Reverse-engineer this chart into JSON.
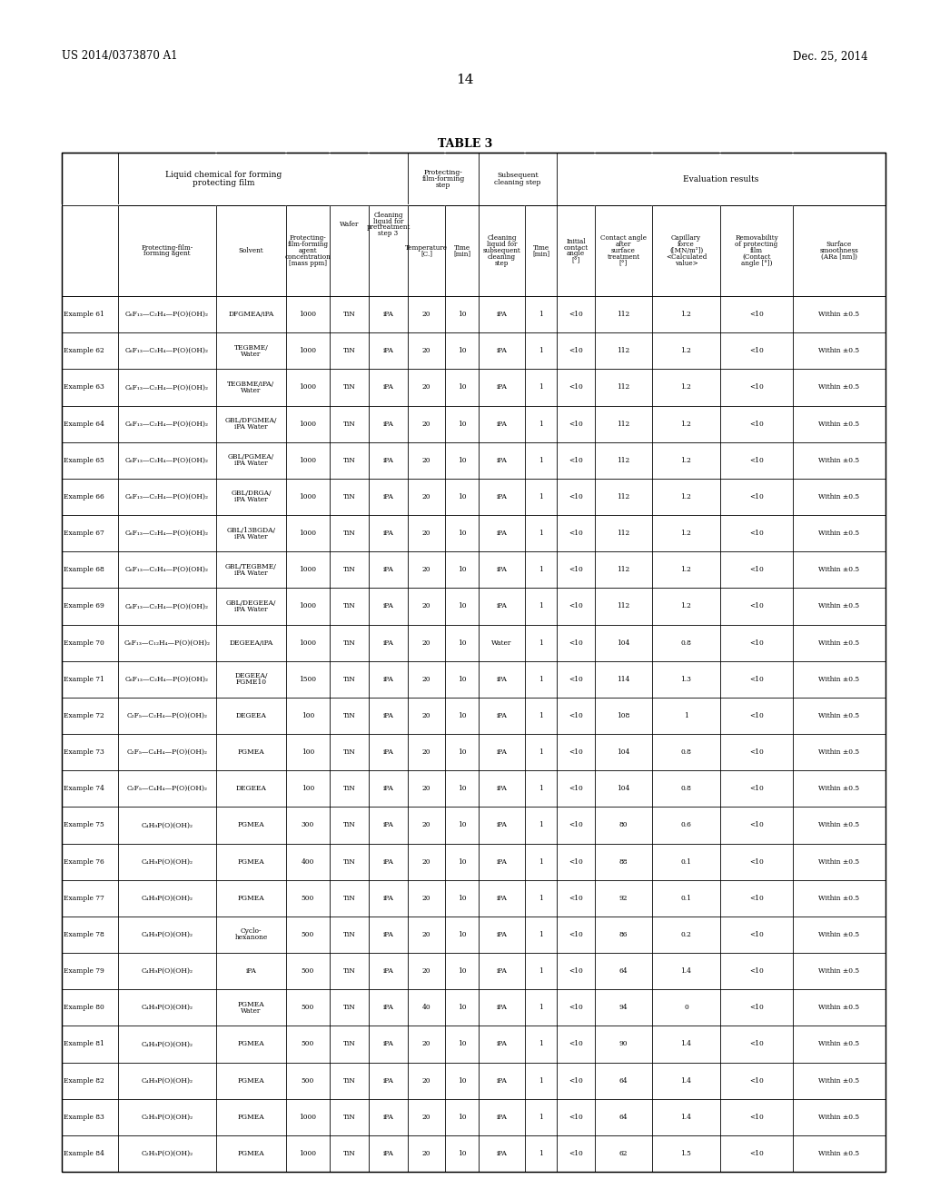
{
  "page_number": "14",
  "patent_number": "US 2014/0373870 A1",
  "patent_date": "Dec. 25, 2014",
  "table_title": "TABLE 3",
  "rows": [
    [
      "Example 61",
      "C₆F₁₃—C₂H₄—P(O)(OH)₂",
      "DFGMEA/iPA",
      "1000",
      "TiN",
      "iPA",
      "20",
      "10",
      "iPA",
      "1",
      "<10",
      "112",
      "1.2",
      "<10",
      "Within ±0.5"
    ],
    [
      "Example 62",
      "C₆F₁₃—C₂H₄—P(O)(OH)₂",
      "TEGBME/\nWater",
      "1000",
      "TiN",
      "iPA",
      "20",
      "10",
      "iPA",
      "1",
      "<10",
      "112",
      "1.2",
      "<10",
      "Within ±0.5"
    ],
    [
      "Example 63",
      "C₆F₁₃—C₂H₄—P(O)(OH)₂",
      "TEGBME/iPA/\nWater",
      "1000",
      "TiN",
      "iPA",
      "20",
      "10",
      "iPA",
      "1",
      "<10",
      "112",
      "1.2",
      "<10",
      "Within ±0.5"
    ],
    [
      "Example 64",
      "C₆F₁₃—C₂H₄—P(O)(OH)₂",
      "GBL/DFGMEA/\niPA Water",
      "1000",
      "TiN",
      "iPA",
      "20",
      "10",
      "iPA",
      "1",
      "<10",
      "112",
      "1.2",
      "<10",
      "Within ±0.5"
    ],
    [
      "Example 65",
      "C₆F₁₃—C₂H₄—P(O)(OH)₂",
      "GBL/PGMEA/\niPA Water",
      "1000",
      "TiN",
      "iPA",
      "20",
      "10",
      "iPA",
      "1",
      "<10",
      "112",
      "1.2",
      "<10",
      "Within ±0.5"
    ],
    [
      "Example 66",
      "C₆F₁₃—C₂H₄—P(O)(OH)₂",
      "GBL/DRGA/\niPA Water",
      "1000",
      "TiN",
      "iPA",
      "20",
      "10",
      "iPA",
      "1",
      "<10",
      "112",
      "1.2",
      "<10",
      "Within ±0.5"
    ],
    [
      "Example 67",
      "C₆F₁₃—C₂H₄—P(O)(OH)₂",
      "GBL/13BGDA/\niPA Water",
      "1000",
      "TiN",
      "iPA",
      "20",
      "10",
      "iPA",
      "1",
      "<10",
      "112",
      "1.2",
      "<10",
      "Within ±0.5"
    ],
    [
      "Example 68",
      "C₆F₁₃—C₂H₄—P(O)(OH)₂",
      "GBL/TEGBME/\niPA Water",
      "1000",
      "TiN",
      "iPA",
      "20",
      "10",
      "iPA",
      "1",
      "<10",
      "112",
      "1.2",
      "<10",
      "Within ±0.5"
    ],
    [
      "Example 69",
      "C₆F₁₃—C₂H₄—P(O)(OH)₂",
      "GBL/DEGEEA/\niPA Water",
      "1000",
      "TiN",
      "iPA",
      "20",
      "10",
      "iPA",
      "1",
      "<10",
      "112",
      "1.2",
      "<10",
      "Within ±0.5"
    ],
    [
      "Example 70",
      "C₆F₁₃—C₁₂H₄—P(O)(OH)₂",
      "DEGEEA/iPA",
      "1000",
      "TiN",
      "iPA",
      "20",
      "10",
      "Water",
      "1",
      "<10",
      "104",
      "0.8",
      "<10",
      "Within ±0.5"
    ],
    [
      "Example 71",
      "C₆F₁₃—C₂H₄—P(O)(OH)₂",
      "DEGEEA/\nFGME10",
      "1500",
      "TiN",
      "iPA",
      "20",
      "10",
      "iPA",
      "1",
      "<10",
      "114",
      "1.3",
      "<10",
      "Within ±0.5"
    ],
    [
      "Example 72",
      "C₂F₅—C₂H₄—P(O)(OH)₂",
      "DEGEEA",
      "100",
      "TiN",
      "iPA",
      "20",
      "10",
      "iPA",
      "1",
      "<10",
      "108",
      "1",
      "<10",
      "Within ±0.5"
    ],
    [
      "Example 73",
      "C₂F₅—C₄H₄—P(O)(OH)₂",
      "PGMEA",
      "100",
      "TiN",
      "iPA",
      "20",
      "10",
      "iPA",
      "1",
      "<10",
      "104",
      "0.8",
      "<10",
      "Within ±0.5"
    ],
    [
      "Example 74",
      "C₂F₅—C₄H₄—P(O)(OH)₂",
      "DEGEEA",
      "100",
      "TiN",
      "iPA",
      "20",
      "10",
      "iPA",
      "1",
      "<10",
      "104",
      "0.8",
      "<10",
      "Within ±0.5"
    ],
    [
      "Example 75",
      "C₄H₉P(O)(OH)₂",
      "PGMEA",
      "300",
      "TiN",
      "iPA",
      "20",
      "10",
      "iPA",
      "1",
      "<10",
      "80",
      "0.6",
      "<10",
      "Within ±0.5"
    ],
    [
      "Example 76",
      "C₄H₉P(O)(OH)₂",
      "PGMEA",
      "400",
      "TiN",
      "iPA",
      "20",
      "10",
      "iPA",
      "1",
      "<10",
      "88",
      "0.1",
      "<10",
      "Within ±0.5"
    ],
    [
      "Example 77",
      "C₄H₉P(O)(OH)₂",
      "PGMEA",
      "500",
      "TiN",
      "iPA",
      "20",
      "10",
      "iPA",
      "1",
      "<10",
      "92",
      "0.1",
      "<10",
      "Within ±0.5"
    ],
    [
      "Example 78",
      "C₄H₉P(O)(OH)₂",
      "Cyclo-\nhexanone",
      "500",
      "TiN",
      "iPA",
      "20",
      "10",
      "iPA",
      "1",
      "<10",
      "86",
      "0.2",
      "<10",
      "Within ±0.5"
    ],
    [
      "Example 79",
      "C₄H₉P(O)(OH)₂",
      "iPA",
      "500",
      "TiN",
      "iPA",
      "20",
      "10",
      "iPA",
      "1",
      "<10",
      "64",
      "1.4",
      "<10",
      "Within ±0.5"
    ],
    [
      "Example 80",
      "C₄H₉P(O)(OH)₂",
      "PGMEA\nWater",
      "500",
      "TiN",
      "iPA",
      "40",
      "10",
      "iPA",
      "1",
      "<10",
      "94",
      "0",
      "<10",
      "Within ±0.5"
    ],
    [
      "Example 81",
      "C₄H₉P(O)(OH)₂",
      "PGMEA",
      "500",
      "TiN",
      "iPA",
      "20",
      "10",
      "iPA",
      "1",
      "<10",
      "90",
      "1.4",
      "<10",
      "Within ±0.5"
    ],
    [
      "Example 82",
      "C₄H₉P(O)(OH)₂",
      "PGMEA",
      "500",
      "TiN",
      "iPA",
      "20",
      "10",
      "iPA",
      "1",
      "<10",
      "64",
      "1.4",
      "<10",
      "Within ±0.5"
    ],
    [
      "Example 83",
      "C₂H₅P(O)(OH)₂",
      "PGMEA",
      "1000",
      "TiN",
      "iPA",
      "20",
      "10",
      "iPA",
      "1",
      "<10",
      "64",
      "1.4",
      "<10",
      "Within ±0.5"
    ],
    [
      "Example 84",
      "C₂H₅P(O)(OH)₂",
      "PGMEA",
      "1000",
      "TiN",
      "iPA",
      "20",
      "10",
      "iPA",
      "1",
      "<10",
      "62",
      "1.5",
      "<10",
      "Within ±0.5"
    ]
  ]
}
